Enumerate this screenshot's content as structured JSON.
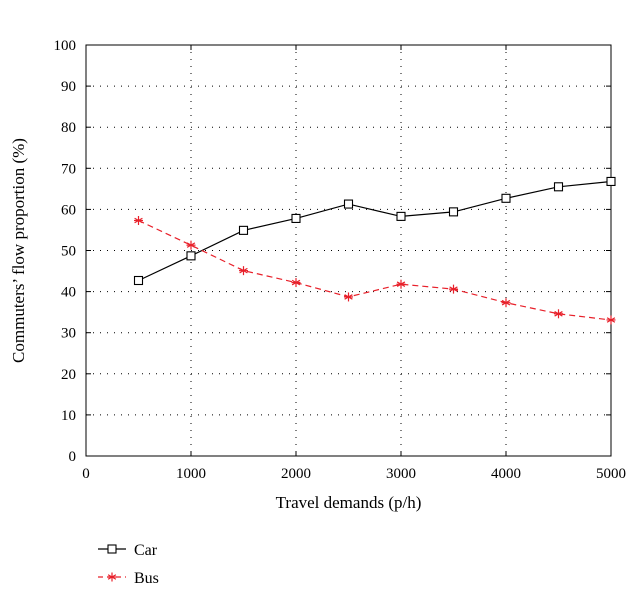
{
  "chart_data": {
    "type": "line",
    "xlabel": "Travel demands (p/h)",
    "ylabel": "Commuters’ flow proportion (%)",
    "xlim": [
      0,
      5000
    ],
    "ylim": [
      0,
      100
    ],
    "x_ticks": [
      0,
      1000,
      2000,
      3000,
      4000,
      5000
    ],
    "y_ticks": [
      0,
      10,
      20,
      30,
      40,
      50,
      60,
      70,
      80,
      90,
      100
    ],
    "grid": true,
    "legend_position": "bottom-left, below plot",
    "x": [
      500,
      1000,
      1500,
      2000,
      2500,
      3000,
      3500,
      4000,
      4500,
      5000
    ],
    "series": [
      {
        "name": "Car",
        "values": [
          42.7,
          48.7,
          54.9,
          57.8,
          61.3,
          58.3,
          59.4,
          62.7,
          65.5,
          66.8
        ],
        "color": "#000000",
        "marker": "square",
        "line_style": "solid"
      },
      {
        "name": "Bus",
        "values": [
          57.3,
          51.3,
          45.1,
          42.2,
          38.7,
          41.8,
          40.6,
          37.3,
          34.6,
          33.1
        ],
        "color": "#e8202a",
        "marker": "asterisk",
        "line_style": "dashed"
      }
    ]
  }
}
